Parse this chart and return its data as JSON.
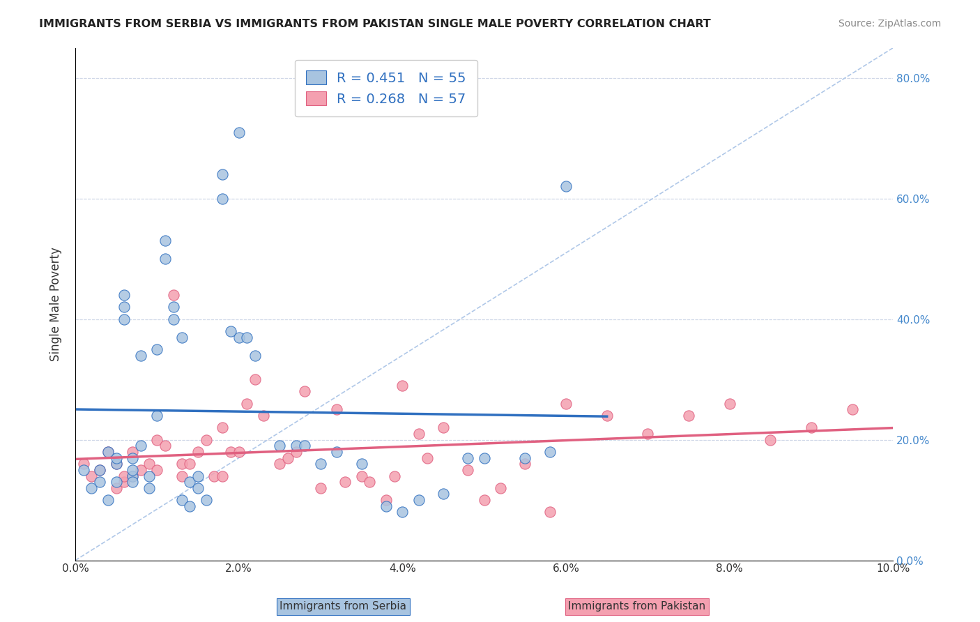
{
  "title": "IMMIGRANTS FROM SERBIA VS IMMIGRANTS FROM PAKISTAN SINGLE MALE POVERTY CORRELATION CHART",
  "source": "Source: ZipAtlas.com",
  "xlabel_serbia": "Immigrants from Serbia",
  "xlabel_pakistan": "Immigrants from Pakistan",
  "ylabel": "Single Male Poverty",
  "xlim": [
    0.0,
    0.1
  ],
  "ylim": [
    0.0,
    0.85
  ],
  "xticks": [
    0.0,
    0.02,
    0.04,
    0.06,
    0.08,
    0.1
  ],
  "yticks": [
    0.0,
    0.2,
    0.4,
    0.6,
    0.8
  ],
  "serbia_color": "#a8c4e0",
  "pakistan_color": "#f4a0b0",
  "serbia_line_color": "#3070c0",
  "pakistan_line_color": "#e06080",
  "diagonal_color": "#b0c8e8",
  "R_serbia": 0.451,
  "N_serbia": 55,
  "R_pakistan": 0.268,
  "N_pakistan": 57,
  "serbia_x": [
    0.001,
    0.002,
    0.003,
    0.003,
    0.004,
    0.004,
    0.005,
    0.005,
    0.005,
    0.006,
    0.006,
    0.006,
    0.007,
    0.007,
    0.007,
    0.007,
    0.008,
    0.008,
    0.009,
    0.009,
    0.01,
    0.01,
    0.011,
    0.011,
    0.012,
    0.012,
    0.013,
    0.013,
    0.014,
    0.014,
    0.015,
    0.015,
    0.016,
    0.018,
    0.018,
    0.019,
    0.02,
    0.02,
    0.021,
    0.022,
    0.025,
    0.027,
    0.028,
    0.03,
    0.032,
    0.035,
    0.038,
    0.04,
    0.042,
    0.045,
    0.048,
    0.05,
    0.055,
    0.058,
    0.06
  ],
  "serbia_y": [
    0.15,
    0.12,
    0.15,
    0.13,
    0.18,
    0.1,
    0.16,
    0.13,
    0.17,
    0.44,
    0.42,
    0.4,
    0.14,
    0.13,
    0.17,
    0.15,
    0.34,
    0.19,
    0.14,
    0.12,
    0.35,
    0.24,
    0.5,
    0.53,
    0.4,
    0.42,
    0.37,
    0.1,
    0.13,
    0.09,
    0.14,
    0.12,
    0.1,
    0.64,
    0.6,
    0.38,
    0.71,
    0.37,
    0.37,
    0.34,
    0.19,
    0.19,
    0.19,
    0.16,
    0.18,
    0.16,
    0.09,
    0.08,
    0.1,
    0.11,
    0.17,
    0.17,
    0.17,
    0.18,
    0.62
  ],
  "pakistan_x": [
    0.001,
    0.002,
    0.003,
    0.004,
    0.005,
    0.005,
    0.006,
    0.006,
    0.007,
    0.007,
    0.008,
    0.009,
    0.01,
    0.01,
    0.011,
    0.012,
    0.013,
    0.013,
    0.014,
    0.015,
    0.016,
    0.017,
    0.018,
    0.018,
    0.019,
    0.02,
    0.021,
    0.022,
    0.023,
    0.025,
    0.026,
    0.027,
    0.028,
    0.03,
    0.032,
    0.033,
    0.035,
    0.036,
    0.038,
    0.039,
    0.04,
    0.042,
    0.043,
    0.045,
    0.048,
    0.05,
    0.052,
    0.055,
    0.058,
    0.06,
    0.065,
    0.07,
    0.075,
    0.08,
    0.085,
    0.09,
    0.095
  ],
  "pakistan_y": [
    0.16,
    0.14,
    0.15,
    0.18,
    0.12,
    0.16,
    0.13,
    0.14,
    0.18,
    0.14,
    0.15,
    0.16,
    0.2,
    0.15,
    0.19,
    0.44,
    0.16,
    0.14,
    0.16,
    0.18,
    0.2,
    0.14,
    0.22,
    0.14,
    0.18,
    0.18,
    0.26,
    0.3,
    0.24,
    0.16,
    0.17,
    0.18,
    0.28,
    0.12,
    0.25,
    0.13,
    0.14,
    0.13,
    0.1,
    0.14,
    0.29,
    0.21,
    0.17,
    0.22,
    0.15,
    0.1,
    0.12,
    0.16,
    0.08,
    0.26,
    0.24,
    0.21,
    0.24,
    0.26,
    0.2,
    0.22,
    0.25
  ]
}
